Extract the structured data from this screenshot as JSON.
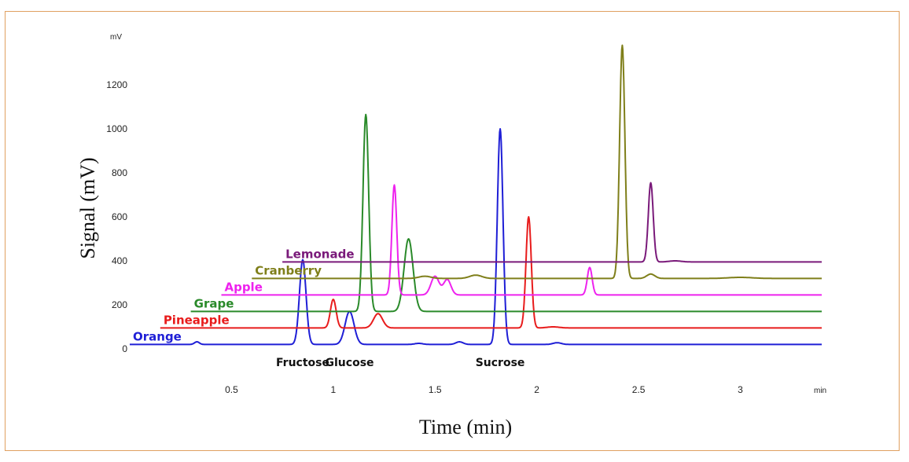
{
  "chart_data": {
    "type": "line",
    "subtype": "chromatogram-overlay",
    "title": "",
    "xlabel": "Time (min)",
    "ylabel": "Signal (mV)",
    "x_unit": "min",
    "y_unit": "mV",
    "xlim": [
      0.0,
      3.4
    ],
    "ylim": [
      0,
      1400
    ],
    "x_ticks": [
      {
        "value": 0.5,
        "label": "0.5"
      },
      {
        "value": 1.0,
        "label": "1"
      },
      {
        "value": 1.5,
        "label": "1.5"
      },
      {
        "value": 2.0,
        "label": "2"
      },
      {
        "value": 2.5,
        "label": "2.5"
      },
      {
        "value": 3.0,
        "label": "3"
      }
    ],
    "y_ticks": [
      {
        "value": 0,
        "label": "0"
      },
      {
        "value": 200,
        "label": "200"
      },
      {
        "value": 400,
        "label": "400"
      },
      {
        "value": 600,
        "label": "600"
      },
      {
        "value": 800,
        "label": "800"
      },
      {
        "value": 1000,
        "label": "1000"
      },
      {
        "value": 1200,
        "label": "1200"
      }
    ],
    "peak_labels": [
      {
        "text": "Fructose",
        "x": 0.85
      },
      {
        "text": "Glucose",
        "x": 1.08
      },
      {
        "text": "Sucrose",
        "x": 1.82
      }
    ],
    "series": [
      {
        "name": "Orange",
        "color": "#1f1fd6",
        "x_start": 0.0,
        "x_end": 3.4,
        "baseline": 20,
        "peaks": [
          [
            0.33,
            12,
            0.012
          ],
          [
            0.85,
            385,
            0.016
          ],
          [
            1.08,
            150,
            0.022
          ],
          [
            1.42,
            5,
            0.02
          ],
          [
            1.62,
            12,
            0.018
          ],
          [
            1.82,
            980,
            0.014
          ],
          [
            2.1,
            8,
            0.02
          ]
        ]
      },
      {
        "name": "Pineapple",
        "color": "#e81c1c",
        "x_start": 0.15,
        "x_end": 3.4,
        "baseline": 95,
        "peaks": [
          [
            1.0,
            130,
            0.014
          ],
          [
            1.22,
            65,
            0.022
          ],
          [
            1.96,
            505,
            0.013
          ],
          [
            2.08,
            5,
            0.03
          ]
        ]
      },
      {
        "name": "Grape",
        "color": "#2a8a2a",
        "x_start": 0.3,
        "x_end": 3.4,
        "baseline": 170,
        "peaks": [
          [
            1.16,
            895,
            0.014
          ],
          [
            1.37,
            330,
            0.022
          ]
        ]
      },
      {
        "name": "Apple",
        "color": "#ee22ee",
        "x_start": 0.45,
        "x_end": 3.4,
        "baseline": 245,
        "peaks": [
          [
            1.3,
            500,
            0.012
          ],
          [
            1.5,
            85,
            0.02
          ],
          [
            1.56,
            70,
            0.018
          ],
          [
            2.26,
            125,
            0.012
          ]
        ]
      },
      {
        "name": "Cranberry",
        "color": "#7f7f1a",
        "x_start": 0.6,
        "x_end": 3.4,
        "baseline": 320,
        "peaks": [
          [
            1.45,
            10,
            0.03
          ],
          [
            1.7,
            15,
            0.03
          ],
          [
            2.42,
            1060,
            0.013
          ],
          [
            2.56,
            20,
            0.02
          ],
          [
            3.0,
            5,
            0.06
          ]
        ]
      },
      {
        "name": "Lemonade",
        "color": "#7a1a7a",
        "x_start": 0.75,
        "x_end": 3.4,
        "baseline": 395,
        "peaks": [
          [
            2.56,
            360,
            0.012
          ],
          [
            2.68,
            5,
            0.03
          ]
        ]
      }
    ]
  }
}
